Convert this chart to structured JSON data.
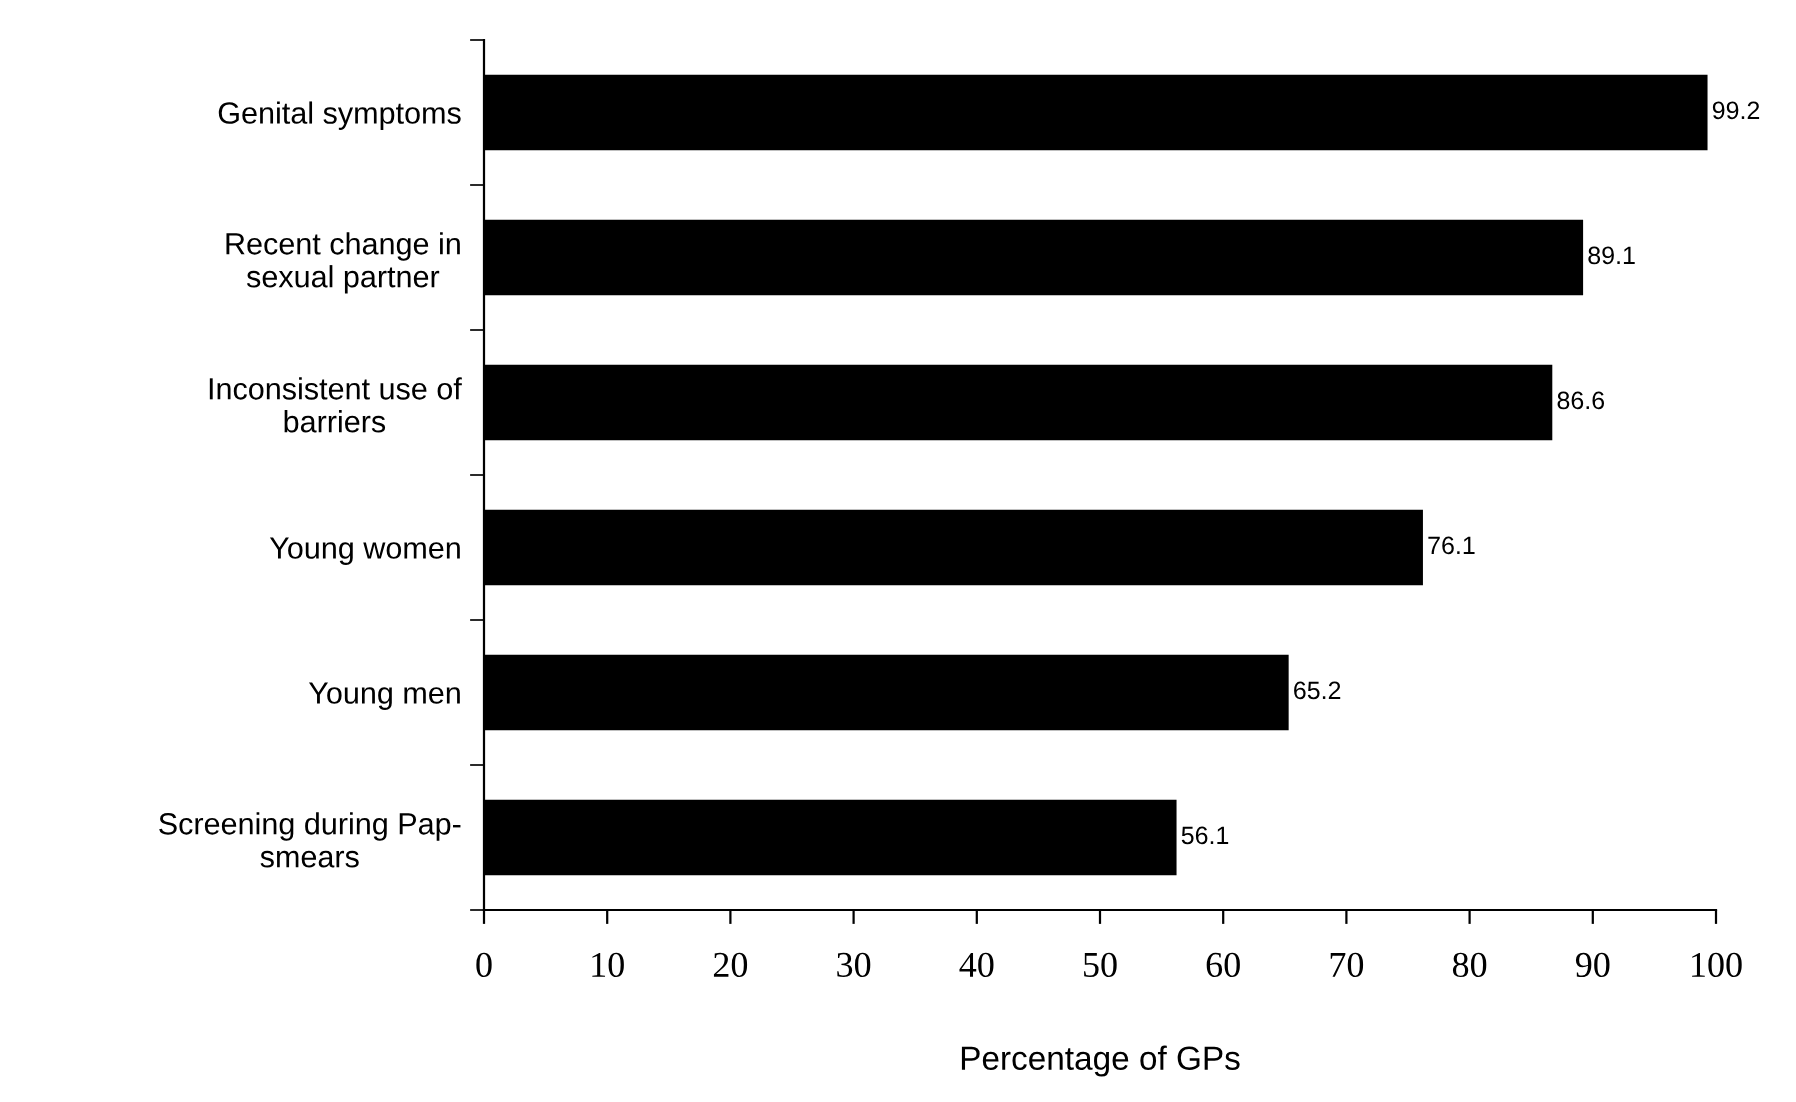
{
  "chart_data": {
    "type": "bar",
    "orientation": "horizontal",
    "xlabel": "Percentage of GPs",
    "categories": [
      "Genital symptoms",
      "Recent change in\nsexual partner",
      "Inconsistent use of\nbarriers",
      "Young women",
      "Young men",
      "Screening during Pap-\nsmears"
    ],
    "values": [
      99.2,
      89.1,
      86.6,
      76.1,
      65.2,
      56.1
    ],
    "color": "#000000",
    "xlim": [
      0,
      100
    ],
    "xticks": [
      0,
      10,
      20,
      30,
      40,
      50,
      60,
      70,
      80,
      90,
      100
    ],
    "data_labels": true,
    "grid": false,
    "legend": false
  }
}
